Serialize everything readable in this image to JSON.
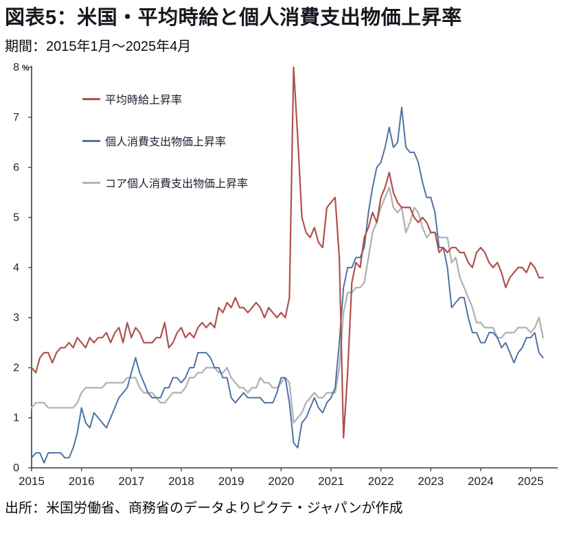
{
  "page": {
    "title": "図表5：米国・平均時給と個人消費支出物価上昇率",
    "subtitle": "期間：2015年1月～2025年4月",
    "source": "出所：米国労働省、商務省のデータよりピクテ・ジャパンが作成"
  },
  "chart_data": {
    "type": "line",
    "title": "図表5：米国・平均時給と個人消費支出物価上昇率",
    "period_label": "期間：2015年1月～2025年4月",
    "x_frequency": "monthly",
    "x_start": "2015-01",
    "x_end": "2025-04",
    "x_tick_labels": [
      "2015",
      "2016",
      "2017",
      "2018",
      "2019",
      "2020",
      "2021",
      "2022",
      "2023",
      "2024",
      "2025"
    ],
    "y_ticks": [
      0,
      1,
      2,
      3,
      4,
      5,
      6,
      7,
      8
    ],
    "ylim": [
      0,
      8
    ],
    "y_unit": "%",
    "grid": false,
    "legend_position": "inside-top-left",
    "series": [
      {
        "name": "平均時給上昇率",
        "color": "#b0504c",
        "width": 2.2,
        "values": [
          2.0,
          1.9,
          2.2,
          2.3,
          2.3,
          2.1,
          2.3,
          2.4,
          2.4,
          2.5,
          2.4,
          2.6,
          2.5,
          2.4,
          2.6,
          2.5,
          2.6,
          2.6,
          2.7,
          2.5,
          2.7,
          2.8,
          2.5,
          2.9,
          2.6,
          2.8,
          2.7,
          2.5,
          2.5,
          2.5,
          2.6,
          2.6,
          2.9,
          2.4,
          2.5,
          2.7,
          2.8,
          2.6,
          2.7,
          2.6,
          2.8,
          2.9,
          2.8,
          2.9,
          2.8,
          3.2,
          3.1,
          3.3,
          3.2,
          3.4,
          3.2,
          3.2,
          3.1,
          3.2,
          3.3,
          3.2,
          3.0,
          3.2,
          3.1,
          3.0,
          3.1,
          3.0,
          3.4,
          8.0,
          6.6,
          5.0,
          4.7,
          4.6,
          4.8,
          4.5,
          4.4,
          5.2,
          5.3,
          5.4,
          4.2,
          0.6,
          1.9,
          3.7,
          4.1,
          4.0,
          4.6,
          4.8,
          5.1,
          4.9,
          5.4,
          5.6,
          5.9,
          5.5,
          5.3,
          5.2,
          5.2,
          5.2,
          5.0,
          4.9,
          5.0,
          4.9,
          4.7,
          4.7,
          4.3,
          4.4,
          4.3,
          4.4,
          4.4,
          4.3,
          4.3,
          4.1,
          4.0,
          4.3,
          4.4,
          4.3,
          4.1,
          4.0,
          4.1,
          3.9,
          3.6,
          3.8,
          3.9,
          4.0,
          4.0,
          3.9,
          4.1,
          4.0,
          3.8,
          3.8
        ]
      },
      {
        "name": "個人消費支出物価上昇率",
        "color": "#4c72a4",
        "width": 2.0,
        "values": [
          0.2,
          0.3,
          0.3,
          0.1,
          0.3,
          0.3,
          0.3,
          0.3,
          0.2,
          0.2,
          0.4,
          0.7,
          1.2,
          0.9,
          0.8,
          1.1,
          1.0,
          0.9,
          0.8,
          1.0,
          1.2,
          1.4,
          1.5,
          1.6,
          1.9,
          2.2,
          1.9,
          1.7,
          1.5,
          1.4,
          1.4,
          1.4,
          1.6,
          1.6,
          1.8,
          1.8,
          1.7,
          1.8,
          2.0,
          2.0,
          2.3,
          2.3,
          2.3,
          2.2,
          2.0,
          2.0,
          1.8,
          1.8,
          1.4,
          1.3,
          1.4,
          1.5,
          1.4,
          1.4,
          1.4,
          1.4,
          1.3,
          1.3,
          1.3,
          1.5,
          1.8,
          1.8,
          1.3,
          0.5,
          0.4,
          0.9,
          1.0,
          1.2,
          1.4,
          1.2,
          1.1,
          1.3,
          1.4,
          1.6,
          2.5,
          3.6,
          4.0,
          4.0,
          4.2,
          4.2,
          4.4,
          5.1,
          5.6,
          6.0,
          6.1,
          6.4,
          6.8,
          6.4,
          6.5,
          7.2,
          6.4,
          6.3,
          6.3,
          6.1,
          5.7,
          5.4,
          5.4,
          5.1,
          4.4,
          4.4,
          4.0,
          3.2,
          3.3,
          3.4,
          3.4,
          3.0,
          2.7,
          2.7,
          2.5,
          2.5,
          2.7,
          2.7,
          2.6,
          2.4,
          2.5,
          2.3,
          2.1,
          2.3,
          2.4,
          2.6,
          2.6,
          2.7,
          2.3,
          2.2
        ]
      },
      {
        "name": "コア個人消費支出物価上昇率",
        "color": "#b4b4b4",
        "width": 2.4,
        "values": [
          1.2,
          1.3,
          1.3,
          1.3,
          1.2,
          1.2,
          1.2,
          1.2,
          1.2,
          1.2,
          1.2,
          1.3,
          1.5,
          1.6,
          1.6,
          1.6,
          1.6,
          1.6,
          1.7,
          1.7,
          1.7,
          1.7,
          1.7,
          1.8,
          1.8,
          1.8,
          1.6,
          1.5,
          1.5,
          1.5,
          1.4,
          1.3,
          1.3,
          1.4,
          1.5,
          1.5,
          1.5,
          1.6,
          1.8,
          1.8,
          1.9,
          1.9,
          2.0,
          2.0,
          2.0,
          1.9,
          1.9,
          2.0,
          1.8,
          1.7,
          1.6,
          1.6,
          1.5,
          1.6,
          1.6,
          1.8,
          1.7,
          1.7,
          1.6,
          1.6,
          1.7,
          1.8,
          1.7,
          0.9,
          1.0,
          1.1,
          1.3,
          1.4,
          1.5,
          1.4,
          1.4,
          1.5,
          1.5,
          1.5,
          2.0,
          3.1,
          3.5,
          3.5,
          3.6,
          3.6,
          3.7,
          4.2,
          4.7,
          4.9,
          5.2,
          5.4,
          5.6,
          5.2,
          5.1,
          5.2,
          4.7,
          4.9,
          5.2,
          5.1,
          4.8,
          4.6,
          4.7,
          4.7,
          4.6,
          4.6,
          4.6,
          4.1,
          4.2,
          3.8,
          3.6,
          3.4,
          3.2,
          2.9,
          2.9,
          2.8,
          2.8,
          2.8,
          2.6,
          2.6,
          2.7,
          2.7,
          2.7,
          2.8,
          2.8,
          2.8,
          2.7,
          2.8,
          3.0,
          2.6
        ]
      }
    ]
  }
}
